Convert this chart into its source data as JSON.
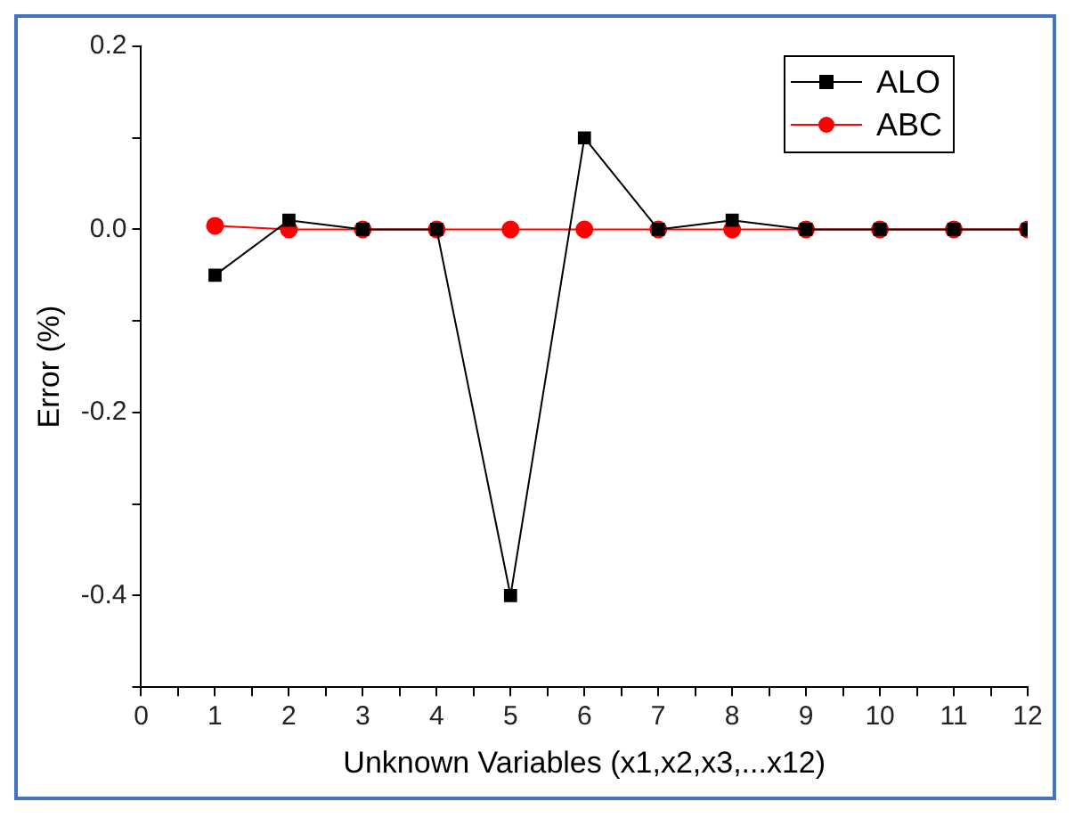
{
  "chart_data": {
    "type": "line",
    "xlabel": "Unknown Variables (x1,x2,x3,...x12)",
    "ylabel": "Error (%)",
    "x": [
      1,
      2,
      3,
      4,
      5,
      6,
      7,
      8,
      9,
      10,
      11,
      12
    ],
    "series": [
      {
        "name": "ALO",
        "color": "#000000",
        "marker": "square",
        "values": [
          -0.05,
          0.01,
          0,
          0,
          -0.4,
          0.1,
          0,
          0.01,
          0,
          0,
          0,
          0
        ]
      },
      {
        "name": "ABC",
        "color": "#ff0000",
        "marker": "circle",
        "values": [
          0.004,
          0,
          0,
          0,
          0,
          0,
          0,
          0,
          0,
          0,
          0,
          0
        ]
      }
    ],
    "xlim": [
      0,
      12
    ],
    "xticks": [
      0,
      {
        "value": 0.5,
        "label": null
      },
      1,
      {
        "value": 1.5,
        "label": null
      },
      2,
      {
        "value": 2.5,
        "label": null
      },
      3,
      {
        "value": 3.5,
        "label": null
      },
      4,
      {
        "value": 4.5,
        "label": null
      },
      5,
      {
        "value": 5.5,
        "label": null
      },
      6,
      {
        "value": 6.5,
        "label": null
      },
      7,
      {
        "value": 7.5,
        "label": null
      },
      8,
      {
        "value": 8.5,
        "label": null
      },
      9,
      {
        "value": 9.5,
        "label": null
      },
      10,
      {
        "value": 10.5,
        "label": null
      },
      11,
      {
        "value": 11.5,
        "label": null
      },
      12
    ],
    "ylim": [
      -0.5,
      0.2
    ],
    "yticks": [
      {
        "value": -0.5,
        "label": null
      },
      {
        "value": -0.4,
        "label": "-0.4"
      },
      {
        "value": -0.3,
        "label": null
      },
      {
        "value": -0.2,
        "label": "-0.2"
      },
      {
        "value": -0.1,
        "label": null
      },
      {
        "value": 0,
        "label": "0.0"
      },
      {
        "value": 0.1,
        "label": null
      },
      {
        "value": 0.2,
        "label": "0.2"
      }
    ],
    "grid": false,
    "legend": "top right",
    "line_style": "solid"
  }
}
